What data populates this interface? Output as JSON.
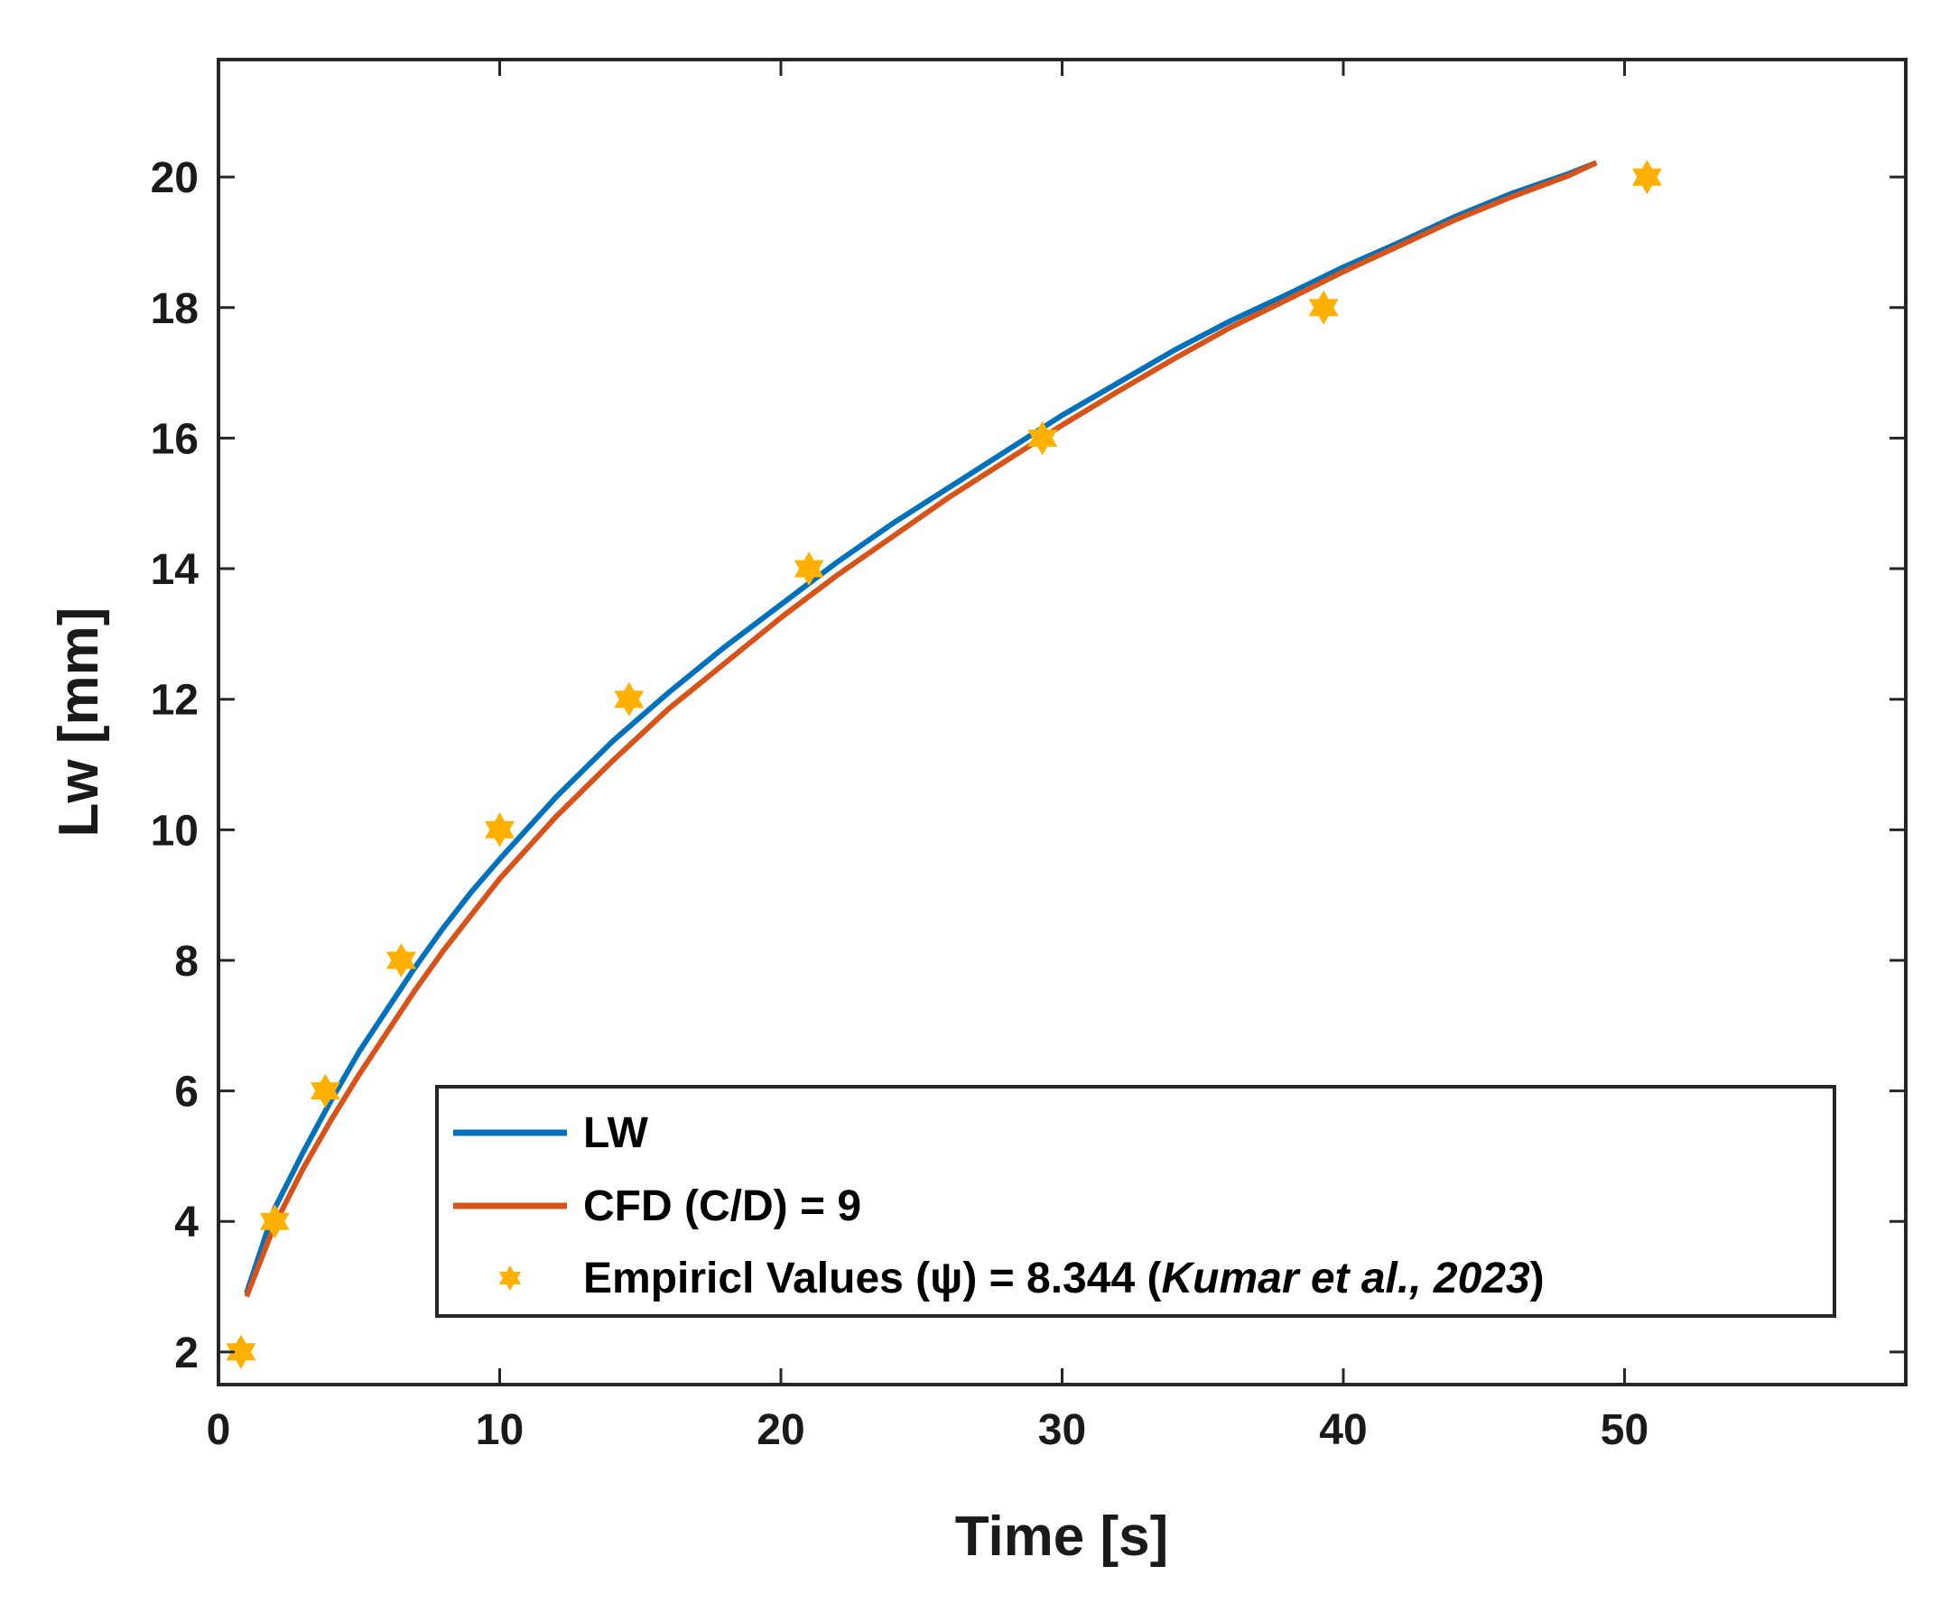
{
  "chart_data": {
    "type": "line",
    "xlabel": "Time [s]",
    "ylabel": "Lw [mm]",
    "xlim": [
      0,
      60
    ],
    "ylim": [
      1.5,
      21.8
    ],
    "xticks": [
      "0",
      "10",
      "20",
      "30",
      "40",
      "50"
    ],
    "yticks": [
      "2",
      "4",
      "6",
      "8",
      "10",
      "12",
      "14",
      "16",
      "18",
      "20"
    ],
    "grid": false,
    "legend_position": "bottom-right",
    "series": [
      {
        "name": "LW",
        "kind": "line",
        "color": "#0072BD",
        "x": [
          1,
          2,
          3,
          4,
          5,
          6,
          7,
          8,
          9,
          10,
          12,
          14,
          16,
          18,
          20,
          22,
          24,
          26,
          28,
          30,
          32,
          34,
          36,
          38,
          40,
          42,
          44,
          46,
          48,
          49
        ],
        "y": [
          2.9,
          4.2,
          5.05,
          5.85,
          6.6,
          7.25,
          7.9,
          8.5,
          9.05,
          9.55,
          10.5,
          11.35,
          12.1,
          12.8,
          13.45,
          14.1,
          14.7,
          15.25,
          15.8,
          16.35,
          16.85,
          17.35,
          17.8,
          18.2,
          18.62,
          19.0,
          19.4,
          19.75,
          20.05,
          20.22
        ]
      },
      {
        "name": "CFD (C/D) = 9",
        "kind": "line",
        "color": "#D95319",
        "x": [
          1,
          2,
          3,
          4,
          5,
          6,
          7,
          8,
          9,
          10,
          12,
          14,
          16,
          18,
          20,
          22,
          24,
          26,
          28,
          30,
          32,
          34,
          36,
          38,
          40,
          42,
          44,
          46,
          48,
          49
        ],
        "y": [
          2.85,
          3.95,
          4.8,
          5.55,
          6.25,
          6.9,
          7.55,
          8.15,
          8.7,
          9.25,
          10.2,
          11.05,
          11.85,
          12.55,
          13.25,
          13.9,
          14.5,
          15.1,
          15.65,
          16.2,
          16.72,
          17.22,
          17.7,
          18.12,
          18.55,
          18.95,
          19.35,
          19.7,
          20.02,
          20.22
        ]
      },
      {
        "name": "Empiricl Values (ψ) = 8.344 (",
        "name_italic": "Kumar et al., 2023",
        "name_suffix": ")",
        "kind": "scatter",
        "marker": "hexagram",
        "color": "#FFB000",
        "x": [
          0.8,
          2.0,
          3.8,
          6.5,
          10.0,
          14.6,
          21.0,
          29.3,
          39.3,
          50.8
        ],
        "y": [
          2,
          4,
          6,
          8,
          10,
          12,
          14,
          16,
          18,
          20
        ]
      }
    ]
  }
}
